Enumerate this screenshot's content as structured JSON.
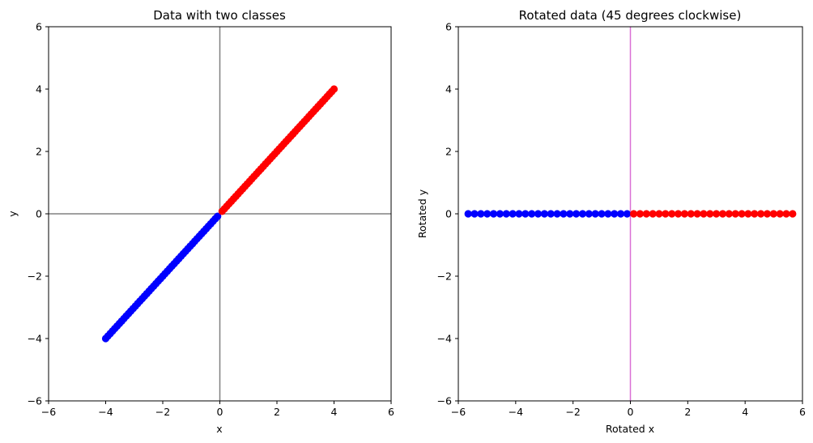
{
  "chart_data": [
    {
      "type": "scatter",
      "title": "Data with two classes",
      "xlabel": "x",
      "ylabel": "y",
      "xlim": [
        -6,
        6
      ],
      "ylim": [
        -6,
        6
      ],
      "xticks": [
        "−6",
        "−4",
        "−2",
        "0",
        "2",
        "4",
        "6"
      ],
      "yticks": [
        "−6",
        "−4",
        "−2",
        "0",
        "2",
        "4",
        "6"
      ],
      "grid": false,
      "reference_lines": {
        "vertical_x": 0,
        "horizontal_y": 0,
        "color": "#808080"
      },
      "series": [
        {
          "color": "#0000ff",
          "x_range": [
            -4,
            -0.08
          ],
          "y_equals_x": true,
          "count": 50
        },
        {
          "color": "#ff0000",
          "x_range": [
            0.08,
            4
          ],
          "y_equals_x": true,
          "count": 50
        }
      ]
    },
    {
      "type": "scatter",
      "title": "Rotated data (45 degrees clockwise)",
      "xlabel": "Rotated x",
      "ylabel": "Rotated y",
      "xlim": [
        -6,
        6
      ],
      "ylim": [
        -6,
        6
      ],
      "xticks": [
        "−6",
        "−4",
        "−2",
        "0",
        "2",
        "4",
        "6"
      ],
      "yticks": [
        "−6",
        "−4",
        "−2",
        "0",
        "2",
        "4",
        "6"
      ],
      "grid": false,
      "reference_lines": {
        "vertical_x": 0,
        "color": "#da70d6"
      },
      "series": [
        {
          "color": "#0000ff",
          "x_range": [
            -5.657,
            -0.115
          ],
          "y": 0,
          "count": 26
        },
        {
          "color": "#ff0000",
          "x_range": [
            0.115,
            5.657
          ],
          "y": 0,
          "count": 26
        }
      ]
    }
  ]
}
